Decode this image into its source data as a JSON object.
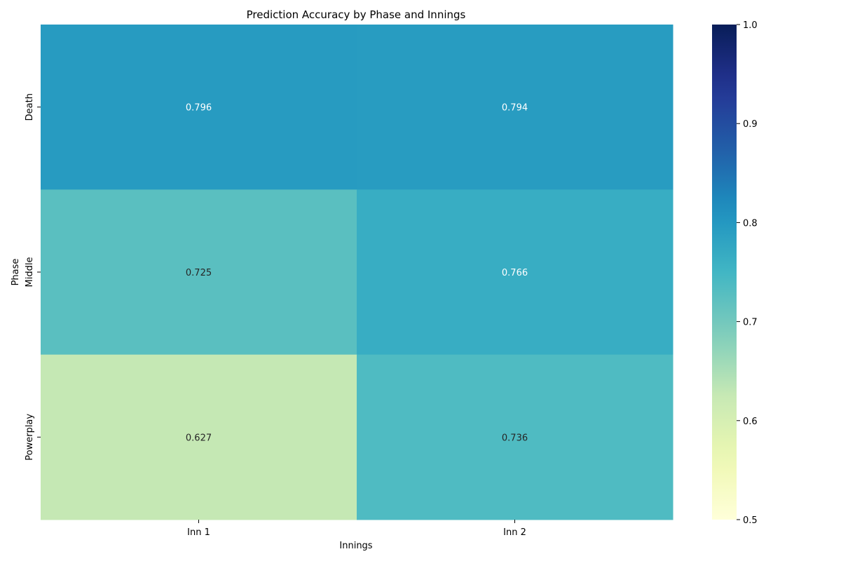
{
  "chart_data": {
    "type": "heatmap",
    "title": "Prediction Accuracy by Phase and Innings",
    "xlabel": "Innings",
    "ylabel": "Phase",
    "x_categories": [
      "Inn 1",
      "Inn 2"
    ],
    "y_categories": [
      "Death",
      "Middle",
      "Powerplay"
    ],
    "values": [
      [
        0.796,
        0.794
      ],
      [
        0.725,
        0.766
      ],
      [
        0.627,
        0.736
      ]
    ],
    "value_labels": [
      [
        "0.796",
        "0.794"
      ],
      [
        "0.725",
        "0.766"
      ],
      [
        "0.627",
        "0.736"
      ]
    ],
    "colormap": "YlGnBu",
    "vmin": 0.5,
    "vmax": 1.0,
    "colorbar_ticks": [
      "0.5",
      "0.6",
      "0.7",
      "0.8",
      "0.9",
      "1.0"
    ],
    "annotation_colors": {
      "dark": "#262626",
      "light": "#ffffff"
    }
  }
}
